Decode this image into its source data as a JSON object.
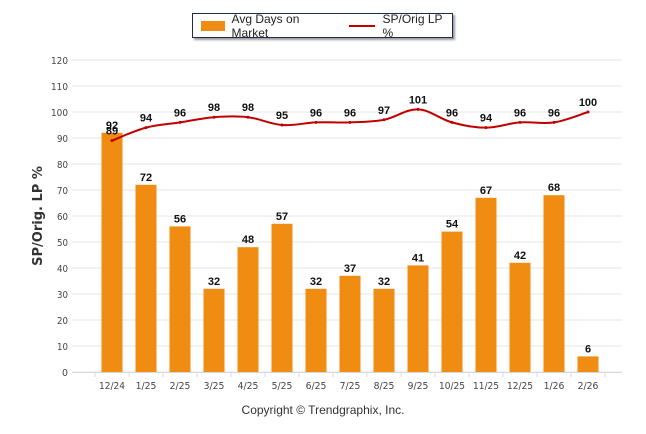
{
  "chart_data": {
    "type": "bar",
    "title": "",
    "xlabel": "",
    "ylabel": "SP/Orig. LP %",
    "ylim": [
      0,
      120
    ],
    "yticks": [
      0,
      10,
      20,
      30,
      40,
      50,
      60,
      70,
      80,
      90,
      100,
      110,
      120
    ],
    "grid": true,
    "legend_position": "top-center",
    "categories": [
      "12/24",
      "1/25",
      "2/25",
      "3/25",
      "4/25",
      "5/25",
      "6/25",
      "7/25",
      "8/25",
      "9/25",
      "10/25",
      "11/25",
      "12/25",
      "1/26",
      "2/26"
    ],
    "series": [
      {
        "name": "Avg Days on Market",
        "type": "bar",
        "color": "#f08c11",
        "values": [
          92,
          72,
          56,
          32,
          48,
          57,
          32,
          37,
          32,
          41,
          54,
          67,
          42,
          68,
          6
        ]
      },
      {
        "name": "SP/Orig LP %",
        "type": "line",
        "color": "#c00000",
        "values": [
          89,
          94,
          96,
          98,
          98,
          95,
          96,
          96,
          97,
          101,
          96,
          94,
          96,
          96,
          100
        ]
      }
    ]
  },
  "legend": {
    "bar_label": "Avg Days on Market",
    "line_label": "SP/Orig LP %"
  },
  "footer": {
    "copyright": "Copyright © Trendgraphix, Inc."
  }
}
